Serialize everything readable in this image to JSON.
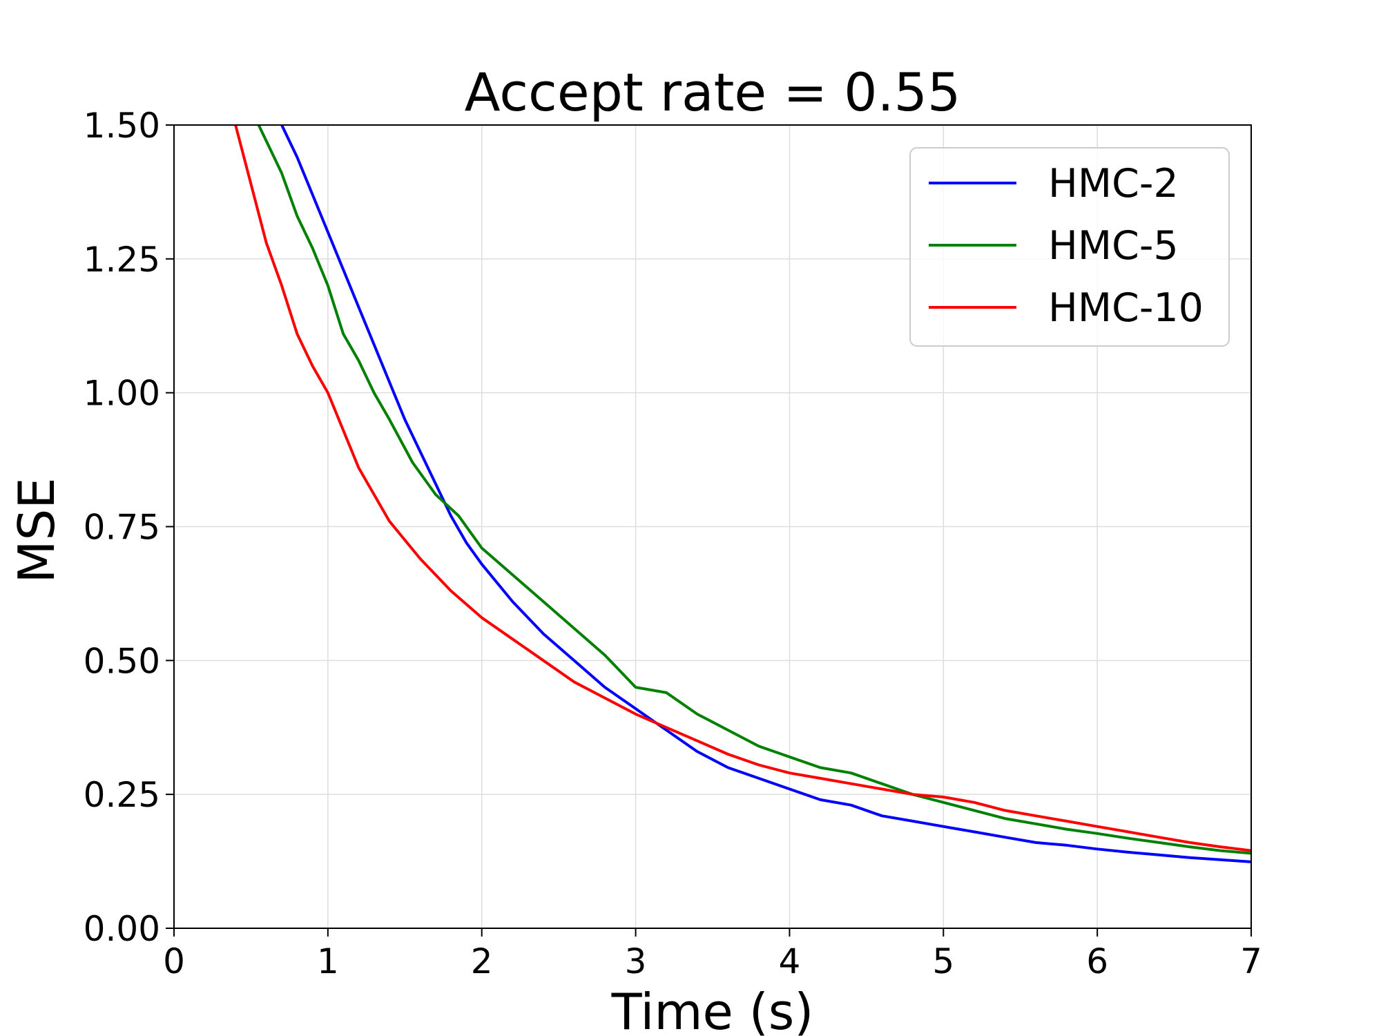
{
  "chart_data": {
    "type": "line",
    "title": "Accept rate = 0.55",
    "xlabel": "Time (s)",
    "ylabel": "MSE",
    "xlim": [
      0,
      7
    ],
    "ylim": [
      0,
      1.5
    ],
    "x_ticks": [
      0,
      1,
      2,
      3,
      4,
      5,
      6,
      7
    ],
    "x_tick_labels": [
      "0",
      "1",
      "2",
      "3",
      "4",
      "5",
      "6",
      "7"
    ],
    "y_ticks": [
      0,
      0.25,
      0.5,
      0.75,
      1.0,
      1.25,
      1.5
    ],
    "y_tick_labels": [
      "0.00",
      "0.25",
      "0.50",
      "0.75",
      "1.00",
      "1.25",
      "1.50"
    ],
    "grid": true,
    "legend_position": "top-right",
    "series": [
      {
        "name": "HMC-2",
        "color": "#0000ff",
        "x": [
          0.7,
          0.8,
          0.9,
          1.0,
          1.1,
          1.2,
          1.3,
          1.4,
          1.5,
          1.6,
          1.7,
          1.8,
          1.9,
          2.0,
          2.2,
          2.4,
          2.6,
          2.8,
          3.0,
          3.2,
          3.4,
          3.6,
          3.8,
          4.0,
          4.2,
          4.4,
          4.6,
          4.8,
          5.0,
          5.2,
          5.4,
          5.6,
          5.8,
          6.0,
          6.2,
          6.4,
          6.6,
          6.8,
          7.0
        ],
        "y": [
          1.5,
          1.44,
          1.37,
          1.3,
          1.23,
          1.16,
          1.09,
          1.02,
          0.95,
          0.89,
          0.83,
          0.77,
          0.72,
          0.68,
          0.61,
          0.55,
          0.5,
          0.45,
          0.41,
          0.37,
          0.33,
          0.3,
          0.28,
          0.26,
          0.24,
          0.23,
          0.21,
          0.2,
          0.19,
          0.18,
          0.17,
          0.16,
          0.155,
          0.148,
          0.142,
          0.137,
          0.132,
          0.128,
          0.124
        ]
      },
      {
        "name": "HMC-5",
        "color": "#008000",
        "x": [
          0.55,
          0.7,
          0.8,
          0.9,
          1.0,
          1.1,
          1.2,
          1.3,
          1.4,
          1.55,
          1.7,
          1.85,
          2.0,
          2.2,
          2.4,
          2.6,
          2.8,
          3.0,
          3.2,
          3.4,
          3.6,
          3.8,
          4.0,
          4.2,
          4.4,
          4.6,
          4.8,
          5.0,
          5.2,
          5.4,
          5.6,
          5.8,
          6.0,
          6.2,
          6.4,
          6.6,
          6.8,
          7.0
        ],
        "y": [
          1.5,
          1.41,
          1.33,
          1.27,
          1.2,
          1.11,
          1.06,
          1.0,
          0.95,
          0.87,
          0.81,
          0.77,
          0.71,
          0.66,
          0.61,
          0.56,
          0.51,
          0.45,
          0.44,
          0.4,
          0.37,
          0.34,
          0.32,
          0.3,
          0.29,
          0.27,
          0.25,
          0.235,
          0.22,
          0.205,
          0.195,
          0.185,
          0.177,
          0.168,
          0.16,
          0.152,
          0.145,
          0.14
        ]
      },
      {
        "name": "HMC-10",
        "color": "#ff0000",
        "x": [
          0.4,
          0.5,
          0.6,
          0.7,
          0.8,
          0.9,
          1.0,
          1.1,
          1.2,
          1.3,
          1.4,
          1.6,
          1.8,
          2.0,
          2.2,
          2.4,
          2.6,
          2.8,
          3.0,
          3.2,
          3.4,
          3.6,
          3.8,
          4.0,
          4.2,
          4.4,
          4.6,
          4.8,
          5.0,
          5.2,
          5.4,
          5.6,
          5.8,
          6.0,
          6.2,
          6.4,
          6.6,
          6.8,
          7.0
        ],
        "y": [
          1.5,
          1.39,
          1.28,
          1.2,
          1.11,
          1.05,
          1.0,
          0.93,
          0.86,
          0.81,
          0.76,
          0.69,
          0.63,
          0.58,
          0.54,
          0.5,
          0.46,
          0.43,
          0.4,
          0.375,
          0.35,
          0.325,
          0.305,
          0.29,
          0.28,
          0.27,
          0.26,
          0.25,
          0.245,
          0.235,
          0.22,
          0.21,
          0.2,
          0.19,
          0.18,
          0.17,
          0.16,
          0.152,
          0.145
        ]
      }
    ]
  }
}
